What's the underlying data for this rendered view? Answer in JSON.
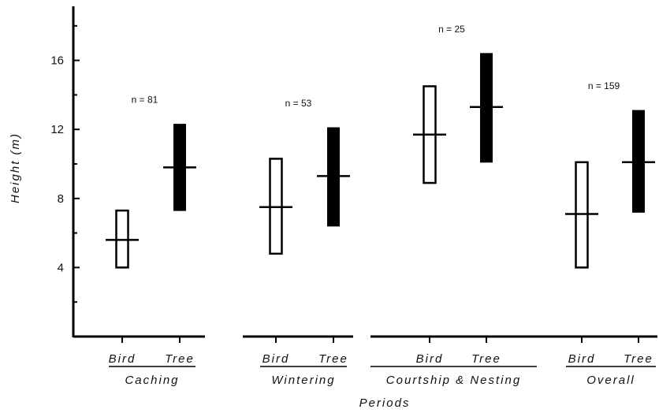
{
  "chart_data": {
    "type": "range-bar",
    "title": "",
    "xlabel": "Periods",
    "ylabel": "Height (m)",
    "ylim": [
      0,
      19.5
    ],
    "yticks": [
      4,
      8,
      12,
      16
    ],
    "series": [
      {
        "name": "Bird",
        "style": "open"
      },
      {
        "name": "Tree",
        "style": "filled"
      }
    ],
    "groups": [
      {
        "label": "Caching",
        "n": "n = 81",
        "bars": [
          {
            "label": "Bird",
            "low": 4.0,
            "high": 7.3,
            "mean": 5.6
          },
          {
            "label": "Tree",
            "low": 7.3,
            "high": 12.3,
            "mean": 9.8
          }
        ]
      },
      {
        "label": "Wintering",
        "n": "n = 53",
        "bars": [
          {
            "label": "Bird",
            "low": 4.8,
            "high": 10.3,
            "mean": 7.5
          },
          {
            "label": "Tree",
            "low": 6.4,
            "high": 12.1,
            "mean": 9.3
          }
        ]
      },
      {
        "label": "Courtship & Nesting",
        "n": "n = 25",
        "bars": [
          {
            "label": "Bird",
            "low": 8.9,
            "high": 14.5,
            "mean": 11.7
          },
          {
            "label": "Tree",
            "low": 10.1,
            "high": 16.4,
            "mean": 13.3
          }
        ]
      },
      {
        "label": "Overall",
        "n": "n = 159",
        "bars": [
          {
            "label": "Bird",
            "low": 4.0,
            "high": 10.1,
            "mean": 7.1
          },
          {
            "label": "Tree",
            "low": 7.2,
            "high": 13.1,
            "mean": 10.1
          }
        ]
      }
    ]
  }
}
